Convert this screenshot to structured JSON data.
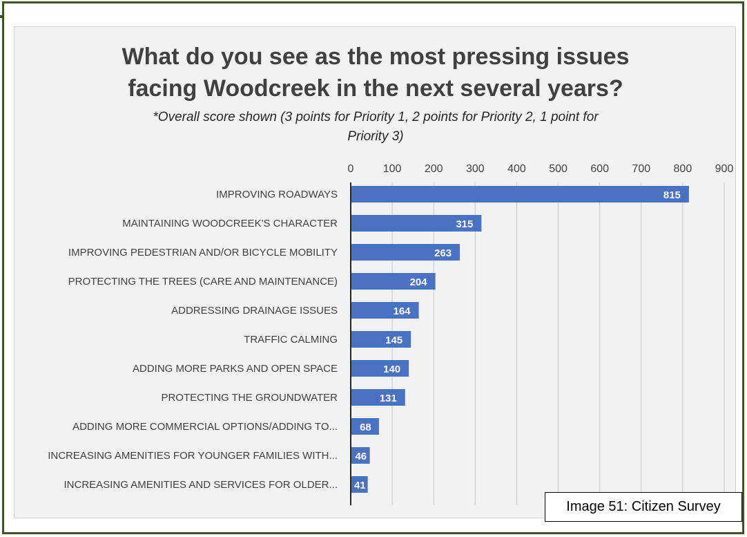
{
  "chart_data": {
    "type": "bar",
    "orientation": "horizontal",
    "title_lines": [
      "What do you see as the most pressing issues",
      "facing Woodcreek in the next several years?"
    ],
    "subtitle_lines": [
      "*Overall score shown (3 points for Priority 1, 2 points for Priority 2, 1 point for",
      "Priority 3)"
    ],
    "categories": [
      "IMPROVING ROADWAYS",
      "MAINTAINING WOODCREEK'S CHARACTER",
      "IMPROVING PEDESTRIAN AND/OR BICYCLE MOBILITY",
      "PROTECTING THE TREES (CARE AND MAINTENANCE)",
      "ADDRESSING DRAINAGE ISSUES",
      "TRAFFIC CALMING",
      "ADDING MORE PARKS AND OPEN SPACE",
      "PROTECTING THE GROUNDWATER",
      "ADDING MORE COMMERCIAL OPTIONS/ADDING TO...",
      "INCREASING AMENITIES FOR YOUNGER FAMILIES WITH...",
      "INCREASING AMENITIES AND SERVICES FOR OLDER..."
    ],
    "values": [
      815,
      315,
      263,
      204,
      164,
      145,
      140,
      131,
      68,
      46,
      41
    ],
    "x_ticks": [
      0,
      100,
      200,
      300,
      400,
      500,
      600,
      700,
      800,
      900
    ],
    "xlim": [
      0,
      900
    ],
    "axis_position": "top",
    "grid": true,
    "bar_color": "#4a72c4",
    "data_labels": true
  },
  "caption": "Image 51: Citizen Survey",
  "colors": {
    "frame": "#3b5323",
    "panel": "#f2f2f2",
    "gridline": "#c8c8c8"
  }
}
